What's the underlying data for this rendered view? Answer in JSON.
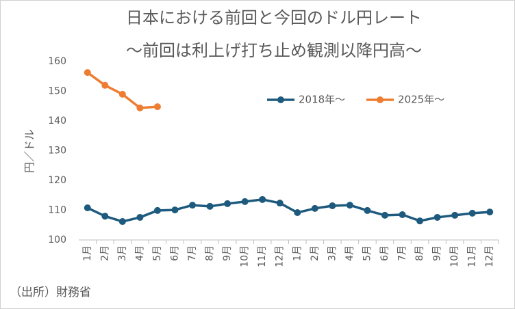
{
  "chart_data": {
    "type": "line",
    "title": "日本における前回と今回のドル円レート",
    "subtitle": "〜前回は利上げ打ち止め観測以降円高〜",
    "y_label": "円／ドル",
    "source": "（出所）財務省",
    "categories": [
      "1月",
      "2月",
      "3月",
      "4月",
      "5月",
      "6月",
      "7月",
      "8月",
      "9月",
      "10月",
      "11月",
      "12月",
      "1月",
      "2月",
      "3月",
      "4月",
      "5月",
      "6月",
      "7月",
      "8月",
      "9月",
      "10月",
      "11月",
      "12月"
    ],
    "series": [
      {
        "name": "2018年〜",
        "color": "#1d5a7e",
        "values": [
          110.8,
          108.0,
          106.2,
          107.6,
          109.9,
          110.1,
          111.7,
          111.3,
          112.2,
          112.9,
          113.6,
          112.4,
          109.2,
          110.6,
          111.5,
          111.7,
          109.9,
          108.3,
          108.5,
          106.4,
          107.6,
          108.3,
          109.0,
          109.4
        ]
      },
      {
        "name": "2025年〜",
        "color": "#ed7d31",
        "values": [
          156.3,
          152.0,
          149.0,
          144.4,
          144.8,
          null,
          null,
          null,
          null,
          null,
          null,
          null,
          null,
          null,
          null,
          null,
          null,
          null,
          null,
          null,
          null,
          null,
          null,
          null
        ]
      }
    ],
    "ylim": [
      100,
      160
    ],
    "yticks": [
      100,
      110,
      120,
      130,
      140,
      150,
      160
    ],
    "grid": false
  }
}
